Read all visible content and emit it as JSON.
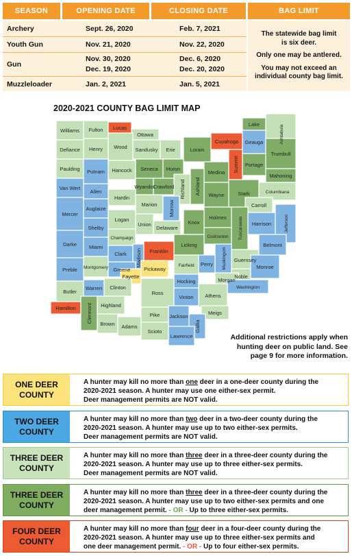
{
  "table": {
    "headers": [
      "SEASON",
      "OPENING DATE",
      "CLOSING DATE",
      "BAG LIMIT"
    ],
    "rows": [
      {
        "season": "Archery",
        "open": "Sept. 26, 2020",
        "close": "Feb. 7, 2021"
      },
      {
        "season": "Youth Gun",
        "open": "Nov. 21, 2020",
        "close": "Nov. 22, 2020"
      },
      {
        "season": "Gun",
        "open": "Nov. 30, 2020",
        "open2": "Dec. 19, 2020",
        "close": "Dec. 6, 2020",
        "close2": "Dec. 20, 2020"
      },
      {
        "season": "Muzzleloader",
        "open": "Jan. 2, 2021",
        "close": "Jan. 5, 2021"
      }
    ],
    "bag_notes": [
      "The statewide bag limit is six deer.",
      "Only one may be antlered.",
      "You may not exceed an individual county bag limit."
    ]
  },
  "map": {
    "title": "2020-2021 COUNTY BAG LIMIT MAP",
    "restriction_note": "Additional restrictions apply when hunting deer on public land. See page 9 for more information.",
    "colors": {
      "one": "#fbe27a",
      "two": "#7fb3e2",
      "three_light": "#c3dfb6",
      "three_dark": "#7fad67",
      "four": "#ec5a31"
    },
    "counties": [
      "Williams",
      "Fulton",
      "Lucas",
      "Ottawa",
      "Defiance",
      "Henry",
      "Wood",
      "Sandusky",
      "Erie",
      "Lorain",
      "Cuyahoga",
      "Lake",
      "Ashtabula",
      "Geauga",
      "Trumbull",
      "Paulding",
      "Putnam",
      "Hancock",
      "Seneca",
      "Huron",
      "Medina",
      "Summit",
      "Portage",
      "Mahoning",
      "Van Wert",
      "Allen",
      "Wyandot",
      "Crawford",
      "Richland",
      "Ashland",
      "Wayne",
      "Stark",
      "Columbiana",
      "Hardin",
      "Mercer",
      "Auglaize",
      "Marion",
      "Morrow",
      "Holmes",
      "Carroll",
      "Knox",
      "Tuscarawas",
      "Shelby",
      "Logan",
      "Union",
      "Delaware",
      "Coshocton",
      "Harrison",
      "Jefferson",
      "Darke",
      "Miami",
      "Champaign",
      "Licking",
      "Guernsey",
      "Belmont",
      "Clark",
      "Madison",
      "Franklin",
      "Muskingum",
      "Preble",
      "Montgomery",
      "Greene",
      "Fairfield",
      "Perry",
      "Noble",
      "Monroe",
      "Fayette",
      "Pickaway",
      "Morgan",
      "Washington",
      "Butler",
      "Warren",
      "Clinton",
      "Hocking",
      "Athens",
      "Ross",
      "Vinton",
      "Hamilton",
      "Clermont",
      "Highland",
      "Meigs",
      "Pike",
      "Jackson",
      "Brown",
      "Adams",
      "Scioto",
      "Gallia",
      "Lawrence"
    ]
  },
  "legend": [
    {
      "label": "ONE DEER COUNTY",
      "color": "#fbe27a",
      "border": "#f5cf3c",
      "l1a": "A hunter may kill no more than ",
      "l1u": "one",
      "l1b": " deer in a one-deer county during the",
      "l2": "2020-2021 season.  A hunter may use one either-sex permit.",
      "l3": "Deer management permits are NOT valid."
    },
    {
      "label": "TWO DEER COUNTY",
      "color": "#4ba8e2",
      "border": "#2d8fd0",
      "l1a": "A hunter may kill no more than ",
      "l1u": "two",
      "l1b": " deer in a two-deer county during the",
      "l2": "2020-2021 season.  A hunter may use up to two either-sex permits.",
      "l3": "Deer management permits are NOT valid."
    },
    {
      "label": "THREE DEER COUNTY",
      "color": "#c8e2bc",
      "border": "#9fc98e",
      "l1a": "A hunter may kill no more than ",
      "l1u": "three",
      "l1b": " deer in a three-deer county during the",
      "l2": "2020-2021 season.  A hunter may use up to three either-sex permits.",
      "l3": "Deer management permits are NOT valid."
    },
    {
      "label": "THREE DEER COUNTY",
      "color": "#7fad5f",
      "border": "#5d9440",
      "l1a": "A hunter may kill no more than ",
      "l1u": "three",
      "l1b": " deer in a three-deer county during the",
      "l2": "2020-2021 season.  A hunter may use up to two either-sex permits and one",
      "l3a": "deer management permit. ",
      "l3or": "- OR -",
      "l3b": " Up to three either-sex permits."
    },
    {
      "label": "FOUR DEER COUNTY",
      "color": "#ec5a31",
      "border": "#d8401a",
      "l1a": "A hunter may kill no more than ",
      "l1u": "four",
      "l1b": " deer in a four-deer county during the",
      "l2": "2020-2021 season.  A hunter may use up to three either-sex permits and",
      "l3a": "one deer management permit. ",
      "l3or": "- OR -",
      "l3b": " Up to four either-sex permits."
    }
  ]
}
